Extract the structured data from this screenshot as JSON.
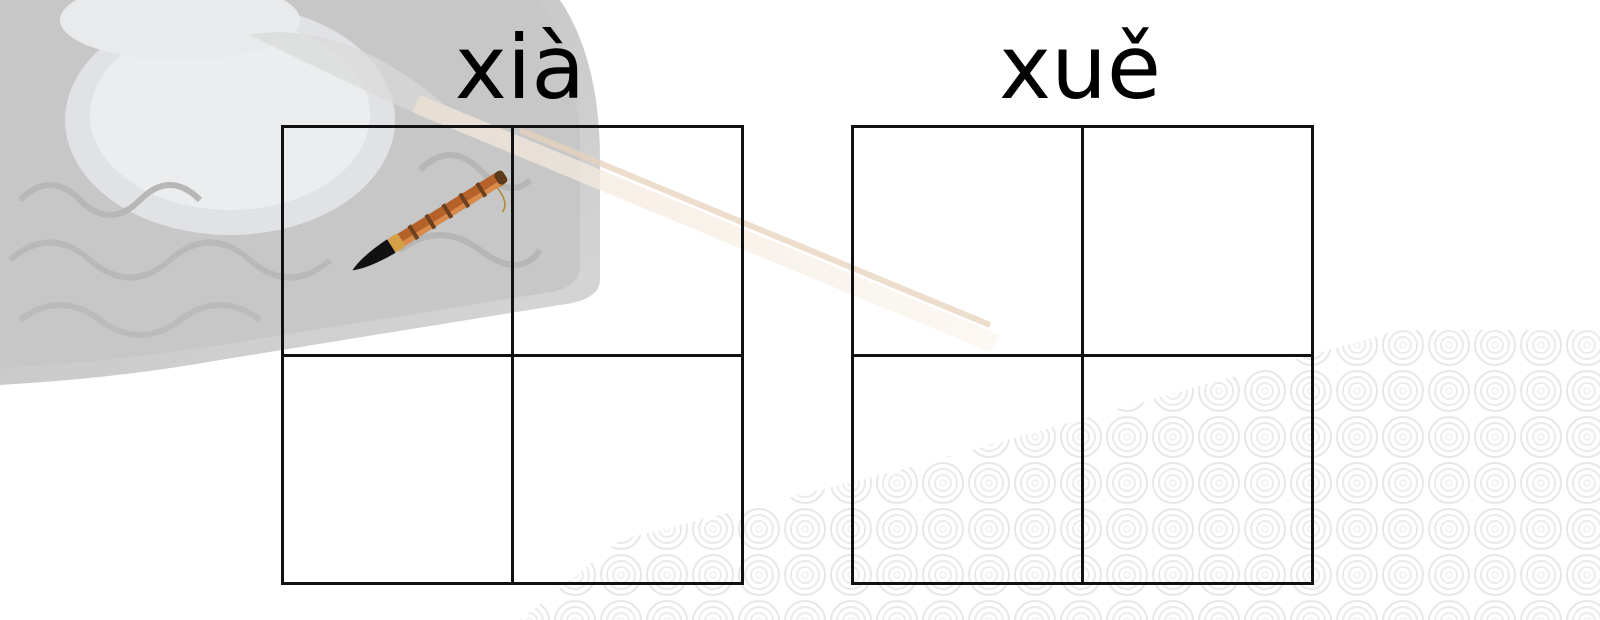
{
  "writing_cards": [
    {
      "pinyin": "xià"
    },
    {
      "pinyin": "xuě"
    }
  ],
  "colors": {
    "grid_line": "#111111",
    "ink": "#000000",
    "background": "#ffffff",
    "brush_handle": "#b5622a"
  },
  "decor": {
    "background_icons": [
      "ink-stone-icon",
      "swirl-cloud-pattern",
      "calligraphy-brush-icon"
    ]
  }
}
